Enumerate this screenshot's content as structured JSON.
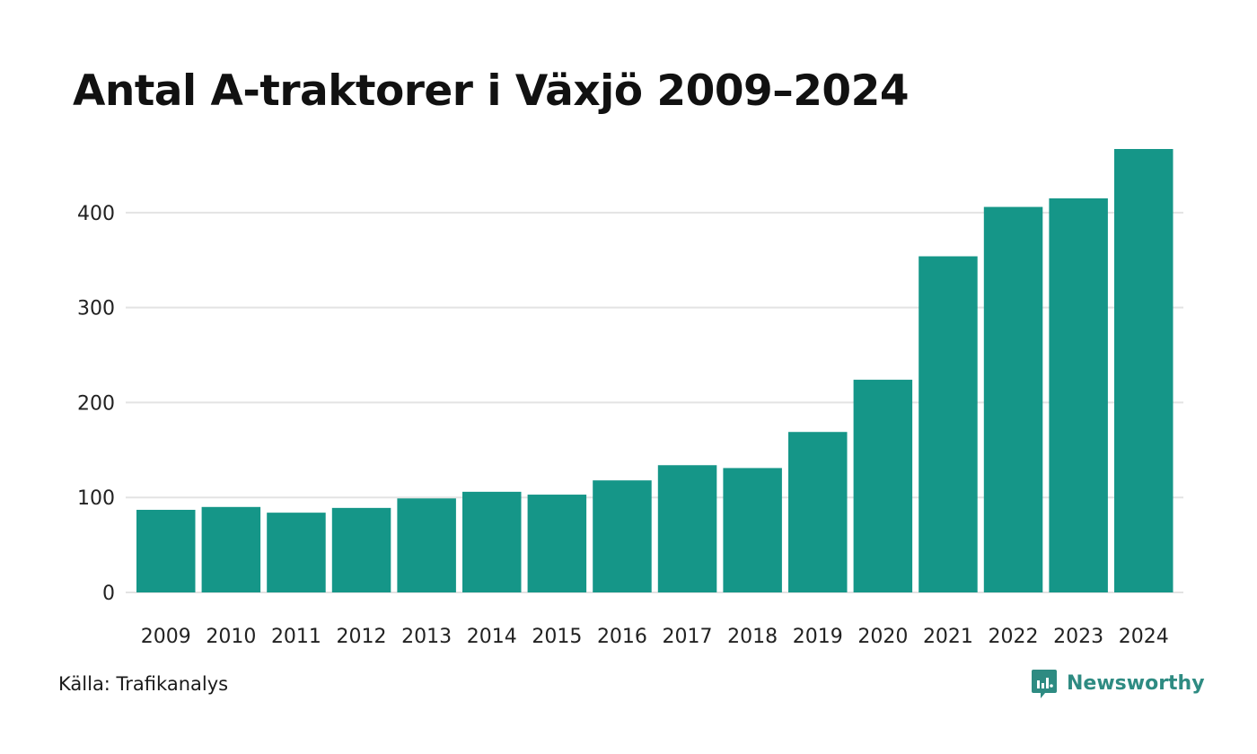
{
  "colors": {
    "bar": "#159688",
    "grid": "#e3e3e3",
    "brand": "#2e8b82"
  },
  "chart_data": {
    "type": "bar",
    "title": "Antal A-traktorer i Växjö 2009–2024",
    "categories": [
      "2009",
      "2010",
      "2011",
      "2012",
      "2013",
      "2014",
      "2015",
      "2016",
      "2017",
      "2018",
      "2019",
      "2020",
      "2021",
      "2022",
      "2023",
      "2024"
    ],
    "values": [
      87,
      90,
      84,
      89,
      99,
      106,
      103,
      118,
      134,
      131,
      169,
      224,
      354,
      406,
      415,
      467
    ],
    "ylim": [
      0,
      467
    ],
    "yticks": [
      "0",
      "100",
      "200",
      "300",
      "400"
    ],
    "xlabel": "",
    "ylabel": "",
    "grid": true
  },
  "footer": {
    "source": "Källa: Trafikanalys",
    "brand": "Newsworthy",
    "brand_icon": "newsworthy-logo-icon"
  }
}
